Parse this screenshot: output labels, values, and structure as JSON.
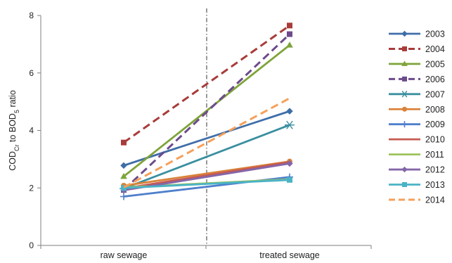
{
  "chart_data": {
    "type": "line",
    "categories": [
      "raw sewage",
      "treated sewage"
    ],
    "ylabel": {
      "parts": [
        {
          "t": "COD",
          "sub": false
        },
        {
          "t": "Cr",
          "sub": true
        },
        {
          "t": " to BOD",
          "sub": false
        },
        {
          "t": "5",
          "sub": true
        },
        {
          "t": " ratio",
          "sub": false
        }
      ]
    },
    "xlabel": "",
    "ylim": [
      0,
      8
    ],
    "yticks": [
      0,
      2,
      4,
      6,
      8
    ],
    "grid": false,
    "divider_between_categories": true,
    "legend_position": "right",
    "series": [
      {
        "name": "2003",
        "values": [
          2.78,
          4.67
        ],
        "color": "#3f6ea8",
        "marker": "diamond",
        "dash": false
      },
      {
        "name": "2004",
        "values": [
          3.58,
          7.65
        ],
        "color": "#a83c3a",
        "marker": "square",
        "dash": true
      },
      {
        "name": "2005",
        "values": [
          2.4,
          6.97
        ],
        "color": "#7fa43a",
        "marker": "triangle",
        "dash": false
      },
      {
        "name": "2006",
        "values": [
          1.93,
          7.35
        ],
        "color": "#6d4a8c",
        "marker": "square",
        "dash": true
      },
      {
        "name": "2007",
        "values": [
          1.98,
          4.19
        ],
        "color": "#3a8fa0",
        "marker": "asterisk",
        "dash": false
      },
      {
        "name": "2008",
        "values": [
          2.08,
          2.92
        ],
        "color": "#d9823a",
        "marker": "circle",
        "dash": false
      },
      {
        "name": "2009",
        "values": [
          1.7,
          2.38
        ],
        "color": "#4f7fcc",
        "marker": "plus",
        "dash": false
      },
      {
        "name": "2010",
        "values": [
          1.98,
          2.9
        ],
        "color": "#c65a52",
        "marker": "none",
        "dash": false
      },
      {
        "name": "2011",
        "values": [
          2.02,
          2.3
        ],
        "color": "#9dc25c",
        "marker": "none",
        "dash": false
      },
      {
        "name": "2012",
        "values": [
          1.92,
          2.85
        ],
        "color": "#8466a8",
        "marker": "diamond",
        "dash": false
      },
      {
        "name": "2013",
        "values": [
          2.0,
          2.28
        ],
        "color": "#4ab3c6",
        "marker": "square",
        "dash": false
      },
      {
        "name": "2014",
        "values": [
          2.02,
          5.12
        ],
        "color": "#f5a05a",
        "marker": "none",
        "dash": true
      }
    ]
  }
}
